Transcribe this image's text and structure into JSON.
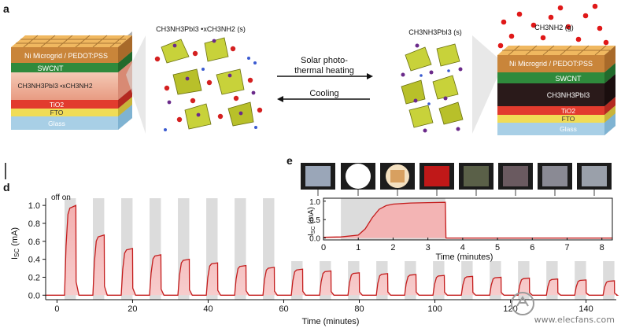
{
  "panel_a": {
    "label": "a",
    "left_stack_layers": [
      "Ni Microgrid / PEDOT:PSS",
      "SWCNT",
      "CH3NH3PbI3 •xCH3NH2",
      "TiO2",
      "FTO",
      "Glass"
    ],
    "right_stack_layers": [
      "Ni Microgrid / PEDOT:PSS",
      "SWCNT",
      "CH3NH3PbI3",
      "TiO2",
      "FTO",
      "Glass"
    ],
    "left_crystal_label": "CH3NH3PbI3 •xCH3NH2 (s)",
    "right_crystal_label": "CH3NH3PbI3 (s)",
    "gas_label": "CH3NH2 (g)",
    "forward_process": [
      "Solar photo-",
      "thermal heating"
    ],
    "reverse_process": "Cooling"
  },
  "panel_e": {
    "label": "e",
    "colors": {
      "photo1": "#9aa6b8",
      "photo2": "#ffffff",
      "photo3": "#d8a060",
      "photo4": "#c01818",
      "photo5": "#5a6048",
      "photo6": "#6a5a60",
      "photo7": "#8a8a94",
      "photo8": "#9aa0aa"
    }
  },
  "panel_d": {
    "label": "d",
    "annotation": "off on"
  },
  "chart_data": [
    {
      "type": "area",
      "panel": "d",
      "title": "",
      "xlabel": "Time (minutes)",
      "ylabel": "ISC (mA)",
      "xlim": [
        -3,
        148
      ],
      "ylim": [
        -0.05,
        1.08
      ],
      "x_ticks": [
        0,
        20,
        40,
        60,
        80,
        100,
        120,
        140
      ],
      "y_ticks": [
        0.0,
        0.2,
        0.4,
        0.6,
        0.8,
        1.0
      ],
      "x_tick_labels": [
        "0",
        "20",
        "40",
        "60",
        "80",
        "100",
        "120",
        "140"
      ],
      "y_tick_labels": [
        "0.0",
        "0.2",
        "0.4",
        "0.6",
        "0.8",
        "1.0"
      ],
      "cycle_period_min": 7.5,
      "on_start_min": [
        2,
        9.5,
        17,
        24.5,
        32,
        39.5,
        47,
        54.5,
        62,
        69.5,
        77,
        84.5,
        92,
        99.5,
        107,
        114.5,
        122,
        129.5,
        137,
        144.5
      ],
      "on_duration_min": 3,
      "cycle_peak_mA": [
        1.0,
        0.67,
        0.52,
        0.45,
        0.4,
        0.36,
        0.33,
        0.31,
        0.29,
        0.27,
        0.25,
        0.24,
        0.23,
        0.22,
        0.21,
        0.2,
        0.19,
        0.18,
        0.17,
        0.16
      ]
    },
    {
      "type": "area",
      "panel": "e",
      "title": "",
      "xlabel": "Time (minutes)",
      "ylabel": "ISC (mA)",
      "xlim": [
        0,
        8.3
      ],
      "ylim": [
        -0.05,
        1.08
      ],
      "x_ticks": [
        0,
        1,
        2,
        3,
        4,
        5,
        6,
        7,
        8
      ],
      "y_ticks": [
        0.0,
        0.5,
        1.0
      ],
      "x_tick_labels": [
        "0",
        "1",
        "2",
        "3",
        "4",
        "5",
        "6",
        "7",
        "8"
      ],
      "y_tick_labels": [
        "0.0",
        "0.5",
        "1.0"
      ],
      "x": [
        0,
        0.5,
        1.0,
        1.2,
        1.4,
        1.6,
        1.8,
        2.0,
        2.5,
        3.0,
        3.5,
        3.52,
        8.3
      ],
      "values": [
        0.02,
        0.03,
        0.08,
        0.25,
        0.55,
        0.78,
        0.88,
        0.92,
        0.95,
        0.96,
        0.97,
        0.0,
        0.0
      ],
      "on_interval": [
        0.5,
        3.5
      ]
    }
  ],
  "watermark": "www.elecfans.com"
}
